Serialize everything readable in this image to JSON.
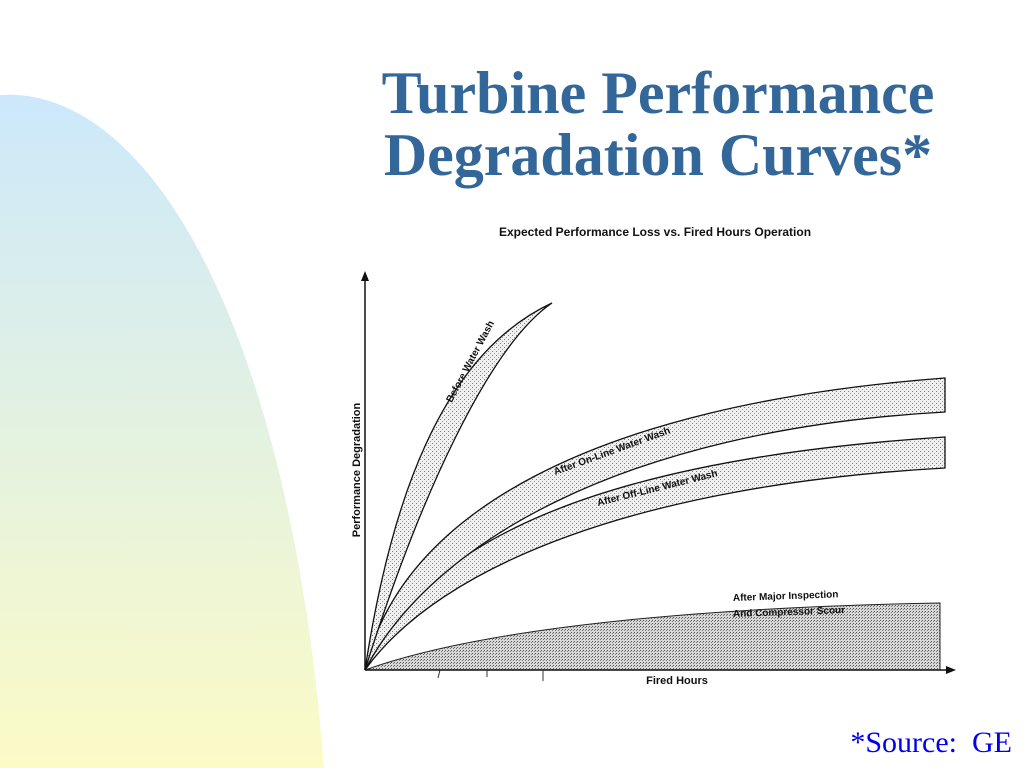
{
  "slide": {
    "title_line1": "Turbine Performance",
    "title_line2": "Degradation Curves*",
    "source": "*Source:  GE"
  },
  "colors": {
    "title": "#336699",
    "source": "#0000ee",
    "swoosh_top": "#cce8fb",
    "swoosh_bottom": "#fbfbc6"
  },
  "chart_data": {
    "type": "line",
    "title": "Expected Performance Loss vs. Fired Hours Operation",
    "xlabel": "Fired Hours",
    "ylabel": "Performance Degradation",
    "series": [
      {
        "name": "Before Water Wash",
        "band": true
      },
      {
        "name": "After On-Line Water Wash",
        "band": true
      },
      {
        "name": "After Off-Line Water Wash",
        "band": true
      },
      {
        "name": "After Major Inspection And Compressor Scour",
        "band": true
      }
    ],
    "band_labels": {
      "before": "Before Water Wash",
      "online": "After On-Line Water Wash",
      "offline": "After Off-Line Water Wash",
      "major_line1": "After Major Inspection",
      "major_line2": "And Compressor Scour"
    },
    "grid": false
  }
}
